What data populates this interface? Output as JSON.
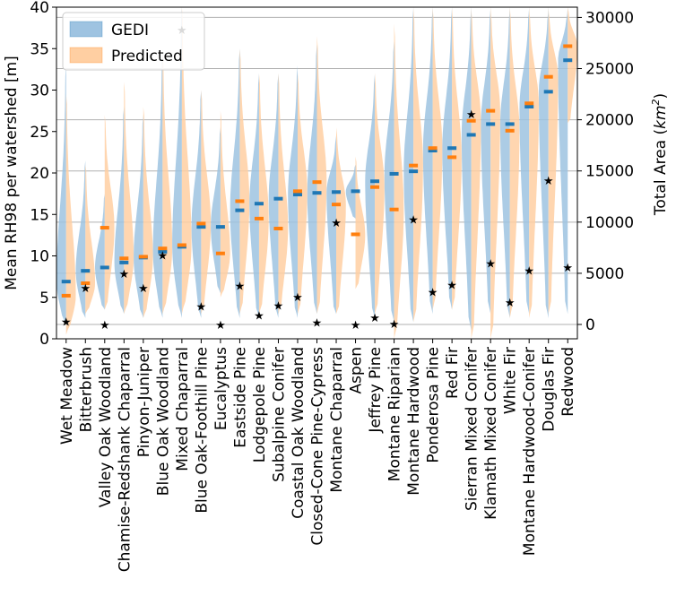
{
  "chart_data": {
    "type": "split-violin",
    "ylabel": "Mean RH98 per watershed [m]",
    "ylabel2_prefix": "Total Area (",
    "ylabel2_unit": "km",
    "ylabel2_exp": "2",
    "ylabel2_suffix": ")",
    "ylim": [
      0,
      40
    ],
    "y_ticks": [
      0,
      5,
      10,
      15,
      20,
      25,
      30,
      35,
      40
    ],
    "y2lim": [
      -1400,
      31000
    ],
    "y2_ticks": [
      0,
      5000,
      10000,
      15000,
      20000,
      25000,
      30000
    ],
    "grid": true,
    "legend": {
      "position": "top-left",
      "entries": [
        "GEDI",
        "Predicted"
      ]
    },
    "colors": {
      "gedi_fill": "#9ec3e1",
      "gedi_mean": "#1f77b4",
      "pred_fill": "#ffcfa2",
      "pred_mean": "#ff7f0e",
      "marker": "#000000"
    },
    "categories": [
      "Wet Meadow",
      "Bitterbrush",
      "Valley Oak Woodland",
      "Chamise-Redshank Chaparral",
      "Pinyon-Juniper",
      "Blue Oak Woodland",
      "Mixed Chaparral",
      "Blue Oak-Foothill Pine",
      "Eucalyptus",
      "Eastside Pine",
      "Lodgepole Pine",
      "Subalpine Conifer",
      "Coastal Oak Woodland",
      "Closed-Cone Pine-Cypress",
      "Montane Chaparral",
      "Aspen",
      "Jeffrey Pine",
      "Montane Riparian",
      "Montane Hardwood",
      "Ponderosa Pine",
      "Red Fir",
      "Sierran Mixed Conifer",
      "Klamath Mixed Conifer",
      "White Fir",
      "Montane Hardwood-Conifer",
      "Douglas Fir",
      "Redwood"
    ],
    "series": [
      {
        "name": "GEDI mean RH98 (m)",
        "values": [
          6.9,
          8.2,
          8.6,
          9.2,
          9.8,
          10.5,
          11.1,
          13.5,
          13.5,
          15.5,
          16.3,
          16.9,
          17.4,
          17.6,
          17.7,
          17.8,
          19.0,
          19.9,
          20.2,
          22.7,
          23.0,
          24.6,
          25.9,
          25.9,
          28.0,
          29.8,
          33.6
        ]
      },
      {
        "name": "Predicted mean RH98 (m)",
        "values": [
          5.2,
          6.7,
          13.4,
          9.7,
          9.9,
          10.9,
          11.3,
          13.9,
          10.3,
          16.6,
          14.5,
          13.3,
          17.8,
          18.9,
          16.2,
          12.6,
          18.3,
          15.6,
          20.9,
          23.0,
          21.9,
          26.3,
          27.5,
          25.1,
          28.4,
          31.6,
          35.3
        ]
      },
      {
        "name": "Total area (km2)",
        "values": [
          300,
          3600,
          0,
          5000,
          3600,
          6800,
          28800,
          1800,
          0,
          3800,
          900,
          1900,
          2700,
          200,
          10000,
          0,
          700,
          100,
          10300,
          3200,
          3900,
          20600,
          6000,
          2200,
          5300,
          14100,
          5600
        ]
      }
    ],
    "distributions": {
      "gedi_ranges": [
        [
          1.5,
          33
        ],
        [
          2.5,
          21.5
        ],
        [
          3.5,
          17.5
        ],
        [
          3,
          28
        ],
        [
          2.5,
          27
        ],
        [
          2.5,
          35
        ],
        [
          2.5,
          40
        ],
        [
          2.5,
          30
        ],
        [
          5.5,
          25.5
        ],
        [
          2.5,
          35
        ],
        [
          2.5,
          32
        ],
        [
          2.5,
          32
        ],
        [
          2.5,
          33
        ],
        [
          3,
          35.5
        ],
        [
          3,
          24.5
        ],
        [
          14.5,
          21
        ],
        [
          2.5,
          32
        ],
        [
          2,
          36
        ],
        [
          2,
          40
        ],
        [
          3,
          40
        ],
        [
          3.5,
          40
        ],
        [
          1,
          40
        ],
        [
          3,
          40
        ],
        [
          2.5,
          40
        ],
        [
          3,
          40
        ],
        [
          2.5,
          40
        ],
        [
          3,
          40
        ]
      ],
      "pred_ranges": [
        [
          0.5,
          29.5
        ],
        [
          3,
          21
        ],
        [
          3.5,
          27
        ],
        [
          3,
          31
        ],
        [
          2.5,
          28
        ],
        [
          3,
          35
        ],
        [
          3,
          40
        ],
        [
          3,
          30
        ],
        [
          5,
          27.5
        ],
        [
          3,
          35
        ],
        [
          3,
          32
        ],
        [
          3,
          32
        ],
        [
          3,
          32
        ],
        [
          3,
          36.5
        ],
        [
          3,
          25.5
        ],
        [
          6,
          22
        ],
        [
          3,
          32
        ],
        [
          0,
          38
        ],
        [
          2,
          40
        ],
        [
          3.5,
          40
        ],
        [
          3.5,
          40
        ],
        [
          0,
          40
        ],
        [
          0,
          40
        ],
        [
          2.5,
          40
        ],
        [
          2.5,
          40
        ],
        [
          3,
          40
        ],
        [
          26,
          40
        ]
      ]
    }
  }
}
